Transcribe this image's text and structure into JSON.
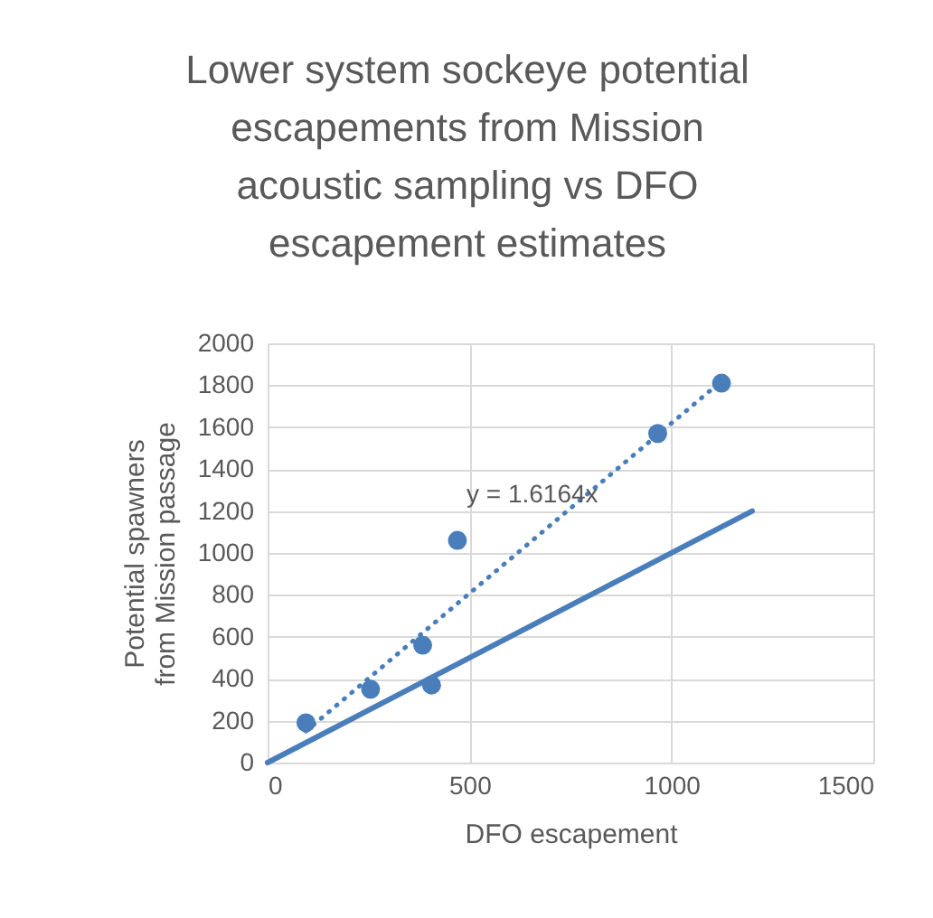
{
  "chart_data": {
    "type": "scatter",
    "title": "Lower system sockeye potential escapements from Mission acoustic sampling vs DFO escapement estimates",
    "xlabel": "DFO escapement",
    "ylabel": "Potential spawners\nfrom Mission passage",
    "x": [
      95,
      255,
      384,
      406,
      470,
      966,
      1124
    ],
    "series": [
      {
        "color": "#4a7ebb",
        "marker": "circle",
        "values": [
          190,
          350,
          560,
          370,
          1060,
          1570,
          1810
        ]
      },
      {
        "type": "line",
        "color": "#4a7ebb",
        "line_style": "dotted",
        "x": [
          95,
          1124
        ],
        "values": [
          150,
          1820
        ]
      },
      {
        "type": "line",
        "color": "#4a7ebb",
        "line_style": "solid",
        "x": [
          0,
          1200
        ],
        "values": [
          0,
          1200
        ]
      }
    ],
    "annotations": [
      "y = 1.6164x"
    ],
    "xlim": [
      0,
      1500
    ],
    "xticks": [
      0,
      500,
      1000,
      1500
    ],
    "ylim": [
      0,
      2000
    ],
    "yticks": [
      0,
      200,
      400,
      600,
      800,
      1000,
      1200,
      1400,
      1600,
      1800,
      2000
    ],
    "grid": true
  }
}
